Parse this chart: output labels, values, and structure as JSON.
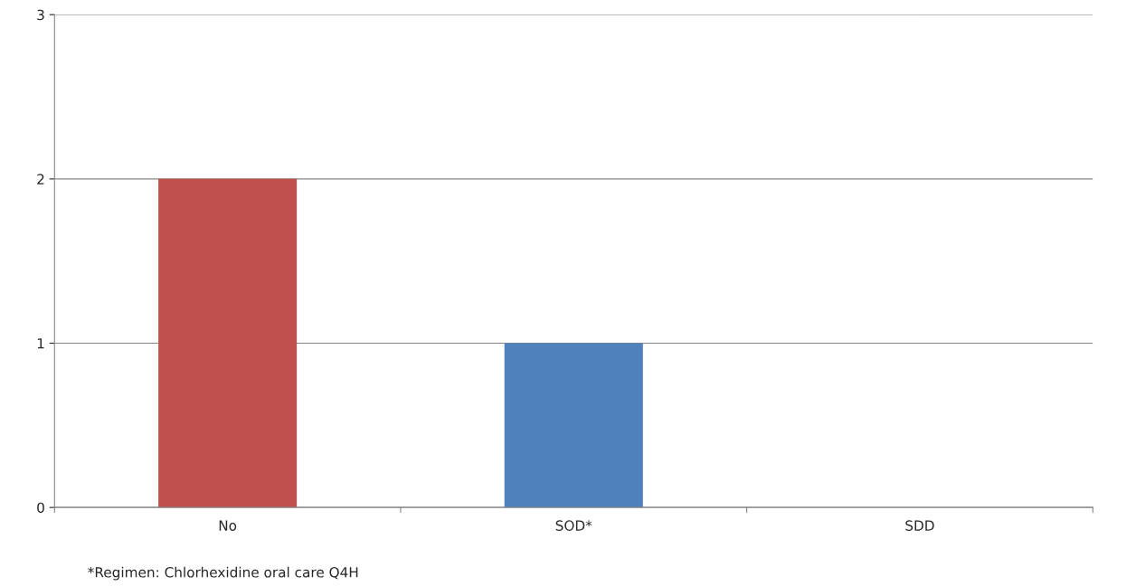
{
  "chart_data": {
    "type": "bar",
    "categories": [
      "No",
      "SOD*",
      "SDD"
    ],
    "values": [
      2,
      1,
      0
    ],
    "colors": [
      "#c0504d",
      "#4f81bd",
      "#9bbb59"
    ],
    "ylim": [
      0,
      3
    ],
    "yticks": [
      0,
      1,
      2,
      3
    ],
    "grid": "y",
    "annotations": [
      "*Regimen: Chlorhexidine oral care Q4H"
    ]
  }
}
